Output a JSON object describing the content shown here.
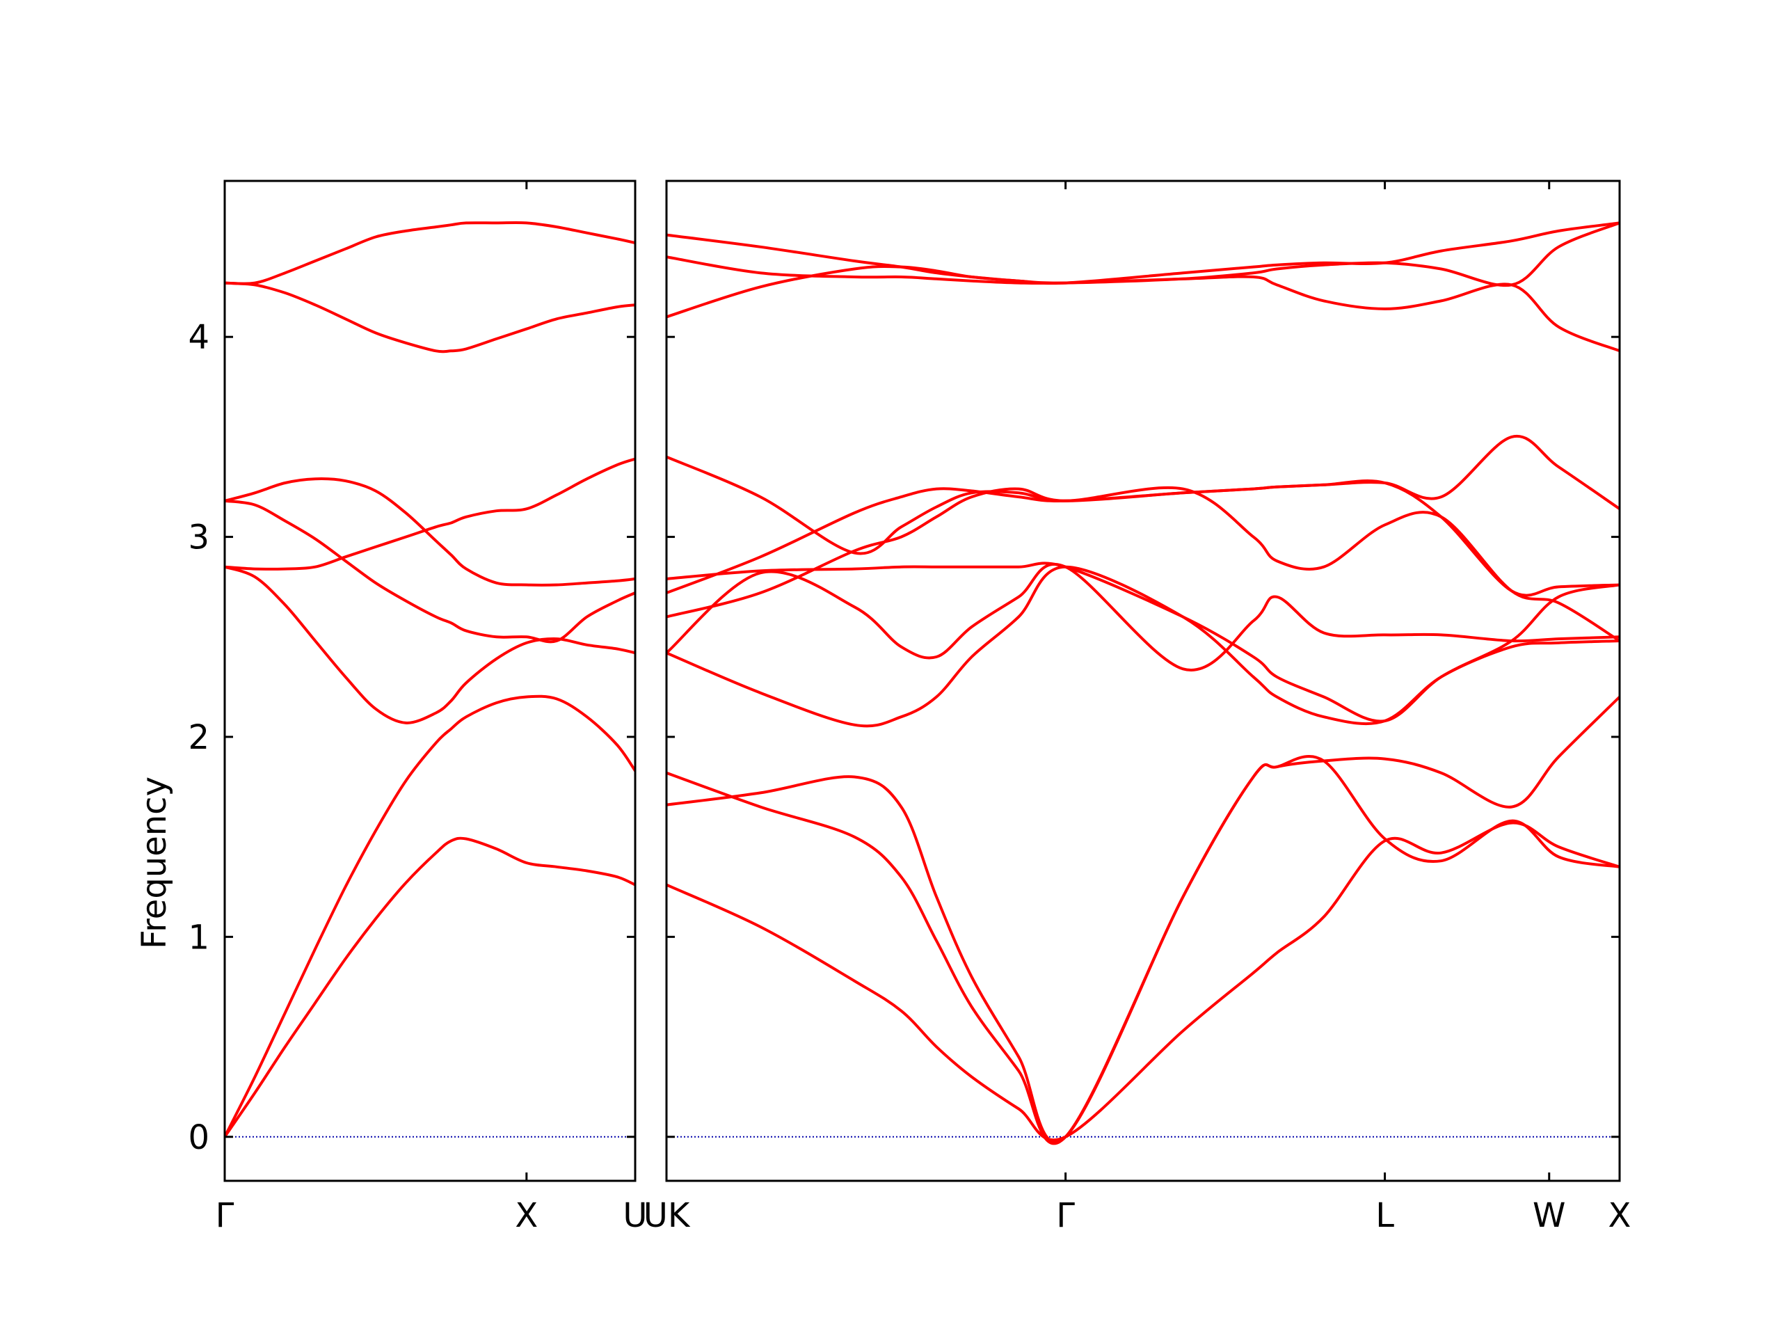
{
  "chart_data": [
    {
      "type": "line",
      "panel": "left",
      "ylabel": "Frequency",
      "ylim": [
        -0.22,
        4.78
      ],
      "yticks": [
        0,
        1,
        2,
        3,
        4
      ],
      "x_labels": [
        "Γ",
        "X",
        "U"
      ],
      "zero_line_color": "#0000aa",
      "band_color": "#ff0000",
      "x": [
        0,
        0.1,
        0.2,
        0.3,
        0.4,
        0.5,
        0.6,
        0.7,
        0.75,
        0.8,
        0.9,
        1.0,
        1.1,
        1.2,
        1.3,
        1.36
      ],
      "series": [
        {
          "values": [
            0.0,
            0.22,
            0.45,
            0.67,
            0.89,
            1.09,
            1.27,
            1.42,
            1.48,
            1.49,
            1.44,
            1.37,
            1.35,
            1.33,
            1.3,
            1.26
          ]
        },
        {
          "values": [
            0.0,
            0.3,
            0.62,
            0.94,
            1.25,
            1.53,
            1.78,
            1.97,
            2.04,
            2.1,
            2.17,
            2.2,
            2.19,
            2.1,
            1.96,
            1.83
          ]
        },
        {
          "values": [
            2.85,
            2.8,
            2.66,
            2.48,
            2.3,
            2.14,
            2.07,
            2.12,
            2.18,
            2.27,
            2.39,
            2.47,
            2.49,
            2.46,
            2.44,
            2.42
          ]
        },
        {
          "values": [
            2.85,
            2.84,
            2.84,
            2.85,
            2.9,
            2.95,
            3.0,
            3.05,
            3.07,
            3.1,
            3.13,
            3.14,
            3.21,
            3.29,
            3.36,
            3.39
          ]
        },
        {
          "values": [
            3.18,
            3.22,
            3.27,
            3.29,
            3.28,
            3.23,
            3.12,
            2.98,
            2.91,
            2.84,
            2.77,
            2.76,
            2.76,
            2.77,
            2.78,
            2.79
          ]
        },
        {
          "values": [
            3.18,
            3.16,
            3.08,
            2.99,
            2.88,
            2.77,
            2.68,
            2.6,
            2.57,
            2.53,
            2.5,
            2.5,
            2.48,
            2.6,
            2.68,
            2.72
          ]
        },
        {
          "values": [
            4.27,
            4.27,
            4.32,
            4.38,
            4.44,
            4.5,
            4.53,
            4.55,
            4.56,
            4.57,
            4.57,
            4.57,
            4.55,
            4.52,
            4.49,
            4.47
          ]
        },
        {
          "values": [
            4.27,
            4.26,
            4.22,
            4.16,
            4.09,
            4.02,
            3.97,
            3.93,
            3.93,
            3.94,
            3.99,
            4.04,
            4.09,
            4.12,
            4.15,
            4.16
          ]
        }
      ]
    },
    {
      "type": "line",
      "panel": "right",
      "ylim": [
        -0.22,
        4.78
      ],
      "x_labels": [
        "UK",
        "Γ",
        "L",
        "W",
        "X"
      ],
      "zero_line_color": "#0000aa",
      "band_color": "#ff0000",
      "x": [
        0,
        0.4,
        0.8,
        1.0,
        1.15,
        1.3,
        1.5,
        1.7,
        2.2,
        2.5,
        2.6,
        2.8,
        3.06,
        3.3,
        3.6,
        3.8,
        4.06
      ],
      "series": [
        {
          "values": [
            1.26,
            1.05,
            0.78,
            0.63,
            0.45,
            0.3,
            0.14,
            0.0,
            0.53,
            0.82,
            0.92,
            1.1,
            1.48,
            1.42,
            1.57,
            1.45,
            1.35
          ]
        },
        {
          "values": [
            1.66,
            1.72,
            1.8,
            1.65,
            1.2,
            0.8,
            0.4,
            0.0,
            1.2,
            1.8,
            1.85,
            1.88,
            1.89,
            1.82,
            1.65,
            1.9,
            2.2
          ]
        },
        {
          "values": [
            1.82,
            1.65,
            1.5,
            1.3,
            0.98,
            0.65,
            0.33,
            0.0,
            1.2,
            1.8,
            1.85,
            1.88,
            1.49,
            1.38,
            1.58,
            1.4,
            1.35
          ]
        },
        {
          "values": [
            2.42,
            2.82,
            2.65,
            2.45,
            2.4,
            2.55,
            2.7,
            2.85,
            2.34,
            2.58,
            2.7,
            2.52,
            2.51,
            2.51,
            2.48,
            2.49,
            2.5
          ]
        },
        {
          "values": [
            2.42,
            2.22,
            2.06,
            2.1,
            2.2,
            2.4,
            2.6,
            2.85,
            2.6,
            2.3,
            2.2,
            2.1,
            2.08,
            2.3,
            2.45,
            2.47,
            2.48
          ]
        },
        {
          "values": [
            2.6,
            2.72,
            2.93,
            3.0,
            3.1,
            3.2,
            3.24,
            3.18,
            3.24,
            3.0,
            2.88,
            2.85,
            3.06,
            3.1,
            2.73,
            2.67,
            2.48
          ]
        },
        {
          "values": [
            2.72,
            2.9,
            3.12,
            3.2,
            3.24,
            3.23,
            3.2,
            3.18,
            3.22,
            3.24,
            3.25,
            3.26,
            3.27,
            3.2,
            3.5,
            3.35,
            3.14
          ]
        },
        {
          "values": [
            3.4,
            3.2,
            2.92,
            3.05,
            3.15,
            3.22,
            3.22,
            3.18,
            3.22,
            3.24,
            3.25,
            3.26,
            3.27,
            3.1,
            2.73,
            2.75,
            2.76
          ]
        },
        {
          "values": [
            2.79,
            2.83,
            2.84,
            2.85,
            2.85,
            2.85,
            2.85,
            2.85,
            2.6,
            2.4,
            2.3,
            2.2,
            2.08,
            2.3,
            2.48,
            2.7,
            2.76
          ]
        },
        {
          "values": [
            4.1,
            4.25,
            4.34,
            4.35,
            4.33,
            4.3,
            4.28,
            4.27,
            4.32,
            4.35,
            4.36,
            4.37,
            4.37,
            4.43,
            4.48,
            4.53,
            4.57
          ]
        },
        {
          "values": [
            4.4,
            4.32,
            4.3,
            4.3,
            4.29,
            4.28,
            4.27,
            4.27,
            4.29,
            4.3,
            4.26,
            4.18,
            4.14,
            4.18,
            4.26,
            4.05,
            3.93
          ]
        },
        {
          "values": [
            4.51,
            4.45,
            4.38,
            4.35,
            4.32,
            4.3,
            4.28,
            4.27,
            4.29,
            4.32,
            4.34,
            4.36,
            4.37,
            4.34,
            4.26,
            4.45,
            4.57
          ]
        }
      ]
    }
  ]
}
